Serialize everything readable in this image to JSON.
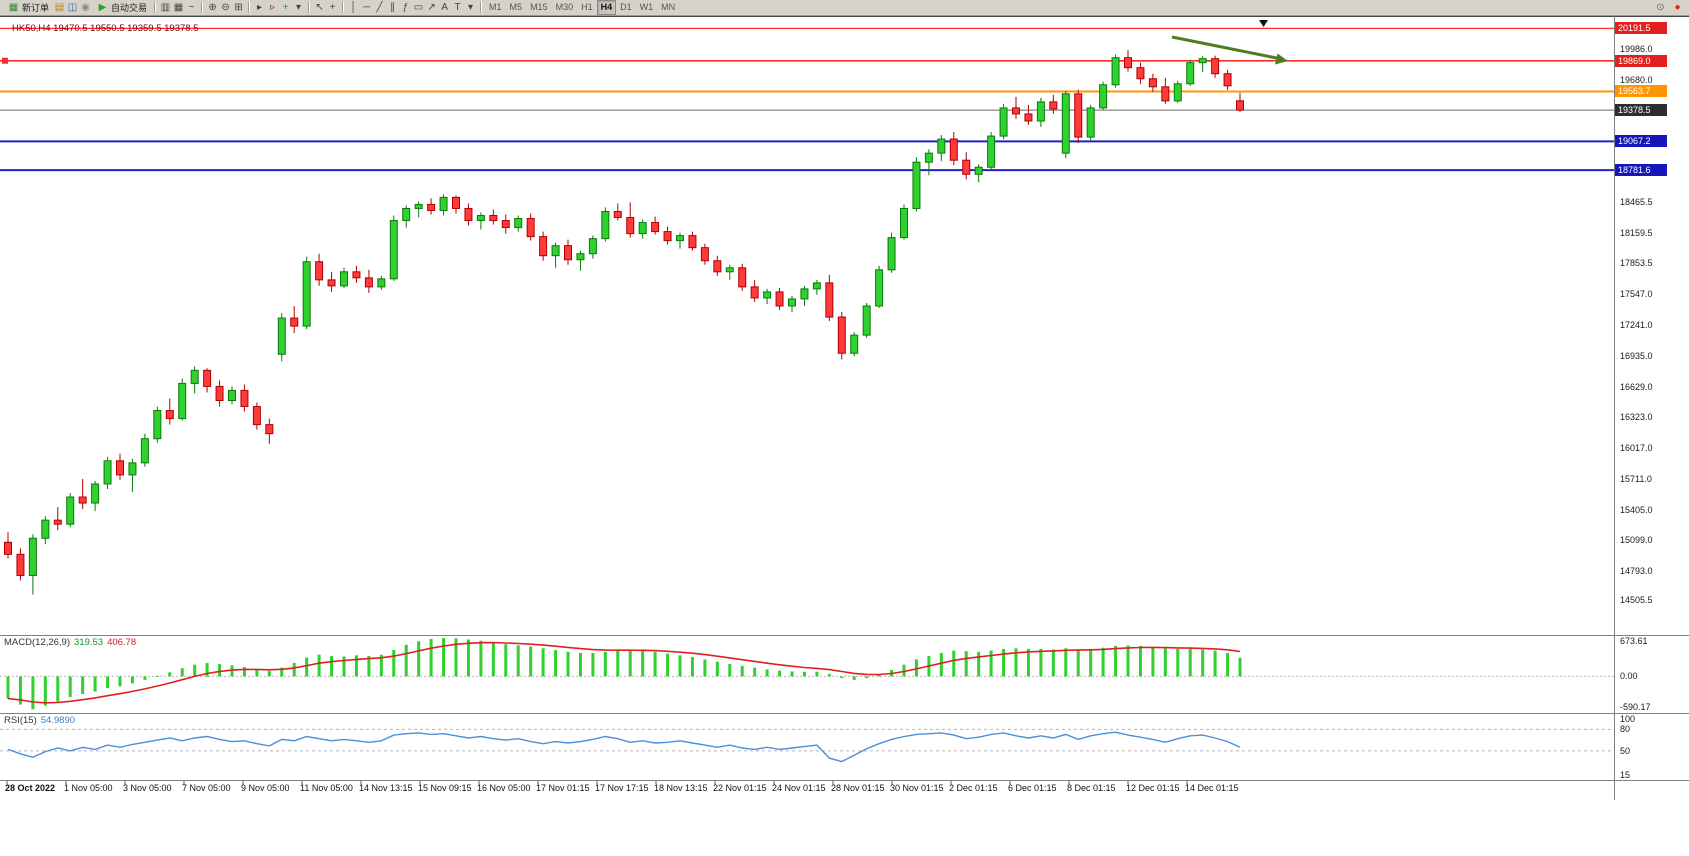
{
  "toolbar": {
    "new_order": {
      "label": "新订单",
      "icon_glyph": "▦",
      "icon_color": "#2e8b2e"
    },
    "autotrading": {
      "label": "自动交易",
      "icon_glyph": "▶",
      "icon_color": "#1faa1f"
    },
    "left_icons": [
      {
        "name": "charts-grid-icon",
        "glyph": "▤",
        "color": "#b8860b"
      },
      {
        "name": "data-window-icon",
        "glyph": "◫",
        "color": "#3a5fae"
      },
      {
        "name": "alerts-icon",
        "glyph": "◉",
        "color": "#888888"
      }
    ],
    "tool_icons": [
      {
        "name": "sep"
      },
      {
        "name": "bar-chart-icon",
        "glyph": "▥",
        "color": "#444444"
      },
      {
        "name": "candlestick-chart-icon",
        "glyph": "▦",
        "color": "#444444"
      },
      {
        "name": "line-chart-icon",
        "glyph": "~",
        "color": "#444444"
      },
      {
        "name": "sep"
      },
      {
        "name": "zoom-in-icon",
        "glyph": "⊕",
        "color": "#444444"
      },
      {
        "name": "zoom-out-icon",
        "glyph": "⊖",
        "color": "#444444"
      },
      {
        "name": "tile-windows-icon",
        "glyph": "⊞",
        "color": "#444444"
      },
      {
        "name": "sep"
      },
      {
        "name": "auto-scroll-icon",
        "glyph": "▸",
        "color": "#444444"
      },
      {
        "name": "chart-shift-icon",
        "glyph": "▹",
        "color": "#444444"
      },
      {
        "name": "new-chart-icon",
        "glyph": "+",
        "color": "#1faa1f"
      },
      {
        "name": "chart-dropdown-icon",
        "glyph": "▾",
        "color": "#444444"
      },
      {
        "name": "sep"
      },
      {
        "name": "cursor-icon",
        "glyph": "↖",
        "color": "#444444"
      },
      {
        "name": "crosshair-icon",
        "glyph": "+",
        "color": "#444444"
      },
      {
        "name": "sep"
      },
      {
        "name": "vertical-line-icon",
        "glyph": "│",
        "color": "#444444"
      },
      {
        "name": "horizontal-line-icon",
        "glyph": "─",
        "color": "#444444"
      },
      {
        "name": "trendline-icon",
        "glyph": "╱",
        "color": "#444444"
      },
      {
        "name": "channel-icon",
        "glyph": "∥",
        "color": "#444444"
      },
      {
        "name": "fibonacci-icon",
        "glyph": "ƒ",
        "color": "#444444"
      },
      {
        "name": "shapes-icon",
        "glyph": "▭",
        "color": "#444444"
      },
      {
        "name": "arrows-icon",
        "glyph": "↗",
        "color": "#444444"
      },
      {
        "name": "text-icon",
        "glyph": "A",
        "color": "#444444"
      },
      {
        "name": "text-label-icon",
        "glyph": "T",
        "color": "#444444"
      },
      {
        "name": "objects-dropdown-icon",
        "glyph": "▾",
        "color": "#444444"
      },
      {
        "name": "sep"
      }
    ],
    "timeframes": [
      "M1",
      "M5",
      "M15",
      "M30",
      "H1",
      "H4",
      "D1",
      "W1",
      "MN"
    ],
    "active_timeframe": "H4",
    "right_icons": [
      {
        "name": "search-icon",
        "glyph": "⊙",
        "color": "#666666"
      },
      {
        "name": "notification-icon",
        "glyph": "●",
        "color": "#e02020"
      }
    ]
  },
  "chart": {
    "ohlc_text": "HK50,H4 19470.5 19550.5 19359.5 19378.5"
  },
  "chart_data": {
    "type": "candlestick",
    "symbol": "HK50",
    "timeframe": "H4",
    "current_bar": {
      "open": 19470.5,
      "high": 19550.5,
      "low": 19359.5,
      "close": 19378.5
    },
    "bull_color": "#2fd12f",
    "bear_color": "#ff3a3a",
    "levels": [
      {
        "price": 20191.5,
        "label": "20191.5",
        "line": "#ff2a2a",
        "width": 1.3,
        "box": "#e32020"
      },
      {
        "price": 19869.0,
        "label": "19869.0",
        "line": "#ff2a2a",
        "width": 1.6,
        "box": "#e32020",
        "handle": true
      },
      {
        "price": 19563.7,
        "label": "19563.7",
        "line": "#ff9500",
        "width": 2,
        "box": "#ff9500"
      },
      {
        "price": 19378.5,
        "label": "19378.5",
        "line": "#6a6a6a",
        "width": 1,
        "box": "#2e2e2e"
      },
      {
        "price": 19067.2,
        "label": "19067.2",
        "line": "#2222cc",
        "width": 2,
        "box": "#1616bb"
      },
      {
        "price": 18781.6,
        "label": "18781.6",
        "line": "#2222cc",
        "width": 2,
        "box": "#1616bb"
      }
    ],
    "annotation_arrow": {
      "color": "#4c7d21"
    },
    "y_axis": [
      {
        "v": 19986.0,
        "t": "19986.0"
      },
      {
        "v": 19680.0,
        "t": "19680.0"
      },
      {
        "v": 18465.5,
        "t": "18465.5"
      },
      {
        "v": 18159.5,
        "t": "18159.5"
      },
      {
        "v": 17853.5,
        "t": "17853.5"
      },
      {
        "v": 17547.0,
        "t": "17547.0"
      },
      {
        "v": 17241.0,
        "t": "17241.0"
      },
      {
        "v": 16935.0,
        "t": "16935.0"
      },
      {
        "v": 16629.0,
        "t": "16629.0"
      },
      {
        "v": 16323.0,
        "t": "16323.0"
      },
      {
        "v": 16017.0,
        "t": "16017.0"
      },
      {
        "v": 15711.0,
        "t": "15711.0"
      },
      {
        "v": 15405.0,
        "t": "15405.0"
      },
      {
        "v": 15099.0,
        "t": "15099.0"
      },
      {
        "v": 14793.0,
        "t": "14793.0"
      },
      {
        "v": 14505.5,
        "t": "14505.5"
      }
    ],
    "x_axis": [
      "28 Oct 2022",
      "1 Nov 05:00",
      "3 Nov 05:00",
      "7 Nov 05:00",
      "9 Nov 05:00",
      "11 Nov 05:00",
      "14 Nov 13:15",
      "15 Nov 09:15",
      "16 Nov 05:00",
      "17 Nov 01:15",
      "17 Nov 17:15",
      "18 Nov 13:15",
      "22 Nov 01:15",
      "24 Nov 01:15",
      "28 Nov 01:15",
      "30 Nov 01:15",
      "2 Dec 01:15",
      "6 Dec 01:15",
      "8 Dec 01:15",
      "12 Dec 01:15",
      "14 Dec 01:15"
    ],
    "candles": [
      [
        15080,
        15180,
        14920,
        14960
      ],
      [
        14960,
        15020,
        14700,
        14750
      ],
      [
        14750,
        15160,
        14560,
        15120
      ],
      [
        15120,
        15340,
        15060,
        15300
      ],
      [
        15300,
        15430,
        15200,
        15260
      ],
      [
        15260,
        15570,
        15230,
        15530
      ],
      [
        15530,
        15710,
        15410,
        15470
      ],
      [
        15470,
        15690,
        15390,
        15660
      ],
      [
        15660,
        15930,
        15610,
        15890
      ],
      [
        15890,
        15960,
        15700,
        15750
      ],
      [
        15750,
        15910,
        15580,
        15870
      ],
      [
        15870,
        16160,
        15830,
        16110
      ],
      [
        16110,
        16430,
        16070,
        16390
      ],
      [
        16390,
        16510,
        16250,
        16310
      ],
      [
        16310,
        16710,
        16290,
        16660
      ],
      [
        16660,
        16830,
        16560,
        16790
      ],
      [
        16790,
        16810,
        16570,
        16630
      ],
      [
        16630,
        16690,
        16430,
        16490
      ],
      [
        16490,
        16630,
        16450,
        16590
      ],
      [
        16590,
        16650,
        16380,
        16430
      ],
      [
        16430,
        16470,
        16200,
        16250
      ],
      [
        16250,
        16310,
        16060,
        16160
      ],
      [
        16950,
        17360,
        16880,
        17310
      ],
      [
        17310,
        17430,
        17160,
        17230
      ],
      [
        17230,
        17920,
        17200,
        17870
      ],
      [
        17870,
        17950,
        17630,
        17690
      ],
      [
        17690,
        17770,
        17570,
        17630
      ],
      [
        17630,
        17810,
        17610,
        17770
      ],
      [
        17770,
        17830,
        17660,
        17710
      ],
      [
        17710,
        17790,
        17560,
        17620
      ],
      [
        17620,
        17730,
        17590,
        17700
      ],
      [
        17700,
        18330,
        17680,
        18280
      ],
      [
        18280,
        18430,
        18210,
        18400
      ],
      [
        18400,
        18470,
        18310,
        18440
      ],
      [
        18440,
        18500,
        18340,
        18380
      ],
      [
        18380,
        18540,
        18330,
        18510
      ],
      [
        18510,
        18530,
        18350,
        18400
      ],
      [
        18400,
        18450,
        18230,
        18280
      ],
      [
        18280,
        18360,
        18190,
        18330
      ],
      [
        18330,
        18390,
        18240,
        18280
      ],
      [
        18280,
        18340,
        18150,
        18210
      ],
      [
        18210,
        18330,
        18170,
        18300
      ],
      [
        18300,
        18350,
        18080,
        18120
      ],
      [
        18120,
        18170,
        17880,
        17930
      ],
      [
        17930,
        18060,
        17810,
        18030
      ],
      [
        18030,
        18090,
        17840,
        17890
      ],
      [
        17890,
        17980,
        17780,
        17950
      ],
      [
        17950,
        18130,
        17900,
        18100
      ],
      [
        18100,
        18410,
        18070,
        18370
      ],
      [
        18370,
        18450,
        18280,
        18310
      ],
      [
        18310,
        18460,
        18110,
        18150
      ],
      [
        18150,
        18290,
        18100,
        18260
      ],
      [
        18260,
        18320,
        18140,
        18170
      ],
      [
        18170,
        18220,
        18040,
        18080
      ],
      [
        18080,
        18160,
        18000,
        18130
      ],
      [
        18130,
        18170,
        17980,
        18010
      ],
      [
        18010,
        18050,
        17840,
        17880
      ],
      [
        17880,
        17930,
        17730,
        17770
      ],
      [
        17770,
        17840,
        17690,
        17810
      ],
      [
        17810,
        17850,
        17580,
        17620
      ],
      [
        17620,
        17690,
        17470,
        17510
      ],
      [
        17510,
        17600,
        17450,
        17570
      ],
      [
        17570,
        17610,
        17390,
        17430
      ],
      [
        17430,
        17530,
        17370,
        17500
      ],
      [
        17500,
        17630,
        17430,
        17600
      ],
      [
        17600,
        17690,
        17540,
        17660
      ],
      [
        17660,
        17740,
        17280,
        17320
      ],
      [
        17320,
        17370,
        16900,
        16960
      ],
      [
        16960,
        17170,
        16930,
        17140
      ],
      [
        17140,
        17460,
        17110,
        17430
      ],
      [
        17430,
        17830,
        17410,
        17790
      ],
      [
        17790,
        18160,
        17760,
        18110
      ],
      [
        18110,
        18440,
        18090,
        18400
      ],
      [
        18400,
        18910,
        18370,
        18860
      ],
      [
        18860,
        18990,
        18730,
        18950
      ],
      [
        18950,
        19130,
        18870,
        19090
      ],
      [
        19090,
        19160,
        18830,
        18880
      ],
      [
        18880,
        18960,
        18690,
        18740
      ],
      [
        18740,
        18840,
        18660,
        18810
      ],
      [
        18810,
        19160,
        18790,
        19120
      ],
      [
        19120,
        19440,
        19090,
        19400
      ],
      [
        19400,
        19510,
        19290,
        19340
      ],
      [
        19340,
        19430,
        19230,
        19270
      ],
      [
        19270,
        19500,
        19210,
        19460
      ],
      [
        19460,
        19530,
        19340,
        19390
      ],
      [
        18950,
        19570,
        18900,
        19540
      ],
      [
        19540,
        19580,
        19050,
        19110
      ],
      [
        19110,
        19430,
        19080,
        19400
      ],
      [
        19400,
        19660,
        19380,
        19630
      ],
      [
        19630,
        19930,
        19600,
        19900
      ],
      [
        19900,
        19975,
        19760,
        19800
      ],
      [
        19800,
        19850,
        19640,
        19690
      ],
      [
        19690,
        19740,
        19560,
        19610
      ],
      [
        19610,
        19700,
        19440,
        19470
      ],
      [
        19470,
        19670,
        19450,
        19640
      ],
      [
        19640,
        19880,
        19620,
        19850
      ],
      [
        19850,
        19915,
        19760,
        19890
      ],
      [
        19890,
        19920,
        19700,
        19740
      ],
      [
        19740,
        19780,
        19580,
        19620
      ],
      [
        19470.5,
        19550.5,
        19359.5,
        19378.5
      ]
    ],
    "indicators": {
      "macd": {
        "name": "MACD(12,26,9)",
        "value_main": "319.53",
        "value_signal": "406.78",
        "axis_values": [
          673.61,
          0,
          -590.17
        ],
        "axis_labels": [
          "673.61",
          "0.00",
          "-590.17"
        ],
        "hist": [
          -380,
          -480,
          -560,
          -500,
          -430,
          -350,
          -300,
          -260,
          -200,
          -170,
          -120,
          -60,
          10,
          70,
          140,
          200,
          230,
          210,
          190,
          160,
          120,
          90,
          150,
          230,
          320,
          370,
          350,
          340,
          360,
          350,
          370,
          450,
          540,
          600,
          640,
          655,
          650,
          630,
          610,
          580,
          550,
          530,
          510,
          480,
          450,
          420,
          400,
          400,
          420,
          440,
          450,
          440,
          420,
          390,
          360,
          330,
          290,
          250,
          210,
          180,
          150,
          120,
          100,
          85,
          80,
          80,
          40,
          -30,
          -60,
          -30,
          30,
          110,
          200,
          290,
          350,
          400,
          440,
          430,
          420,
          440,
          470,
          480,
          470,
          470,
          460,
          480,
          460,
          470,
          490,
          520,
          530,
          520,
          500,
          480,
          470,
          470,
          460,
          440,
          400,
          319.53
        ]
      },
      "rsi": {
        "name": "RSI(15)",
        "value": "54.9890",
        "axis_values": [
          100,
          80,
          50,
          15
        ],
        "axis_labels": [
          "100",
          "80",
          "50",
          "15"
        ],
        "levels": [
          80,
          50
        ],
        "series": [
          52,
          46,
          41,
          49,
          54,
          50,
          55,
          52,
          58,
          55,
          59,
          62,
          65,
          68,
          64,
          68,
          70,
          66,
          63,
          64,
          60,
          57,
          66,
          64,
          70,
          67,
          64,
          66,
          64,
          62,
          64,
          72,
          74,
          75,
          73,
          74,
          71,
          68,
          70,
          67,
          65,
          67,
          63,
          60,
          63,
          61,
          63,
          66,
          70,
          67,
          62,
          64,
          61,
          62,
          64,
          61,
          58,
          55,
          58,
          54,
          52,
          55,
          52,
          54,
          56,
          58,
          40,
          35,
          44,
          53,
          60,
          66,
          70,
          73,
          74,
          75,
          72,
          67,
          69,
          73,
          75,
          71,
          68,
          71,
          68,
          73,
          66,
          71,
          74,
          76,
          72,
          69,
          66,
          62,
          67,
          71,
          72,
          68,
          63,
          54.99
        ]
      }
    }
  }
}
